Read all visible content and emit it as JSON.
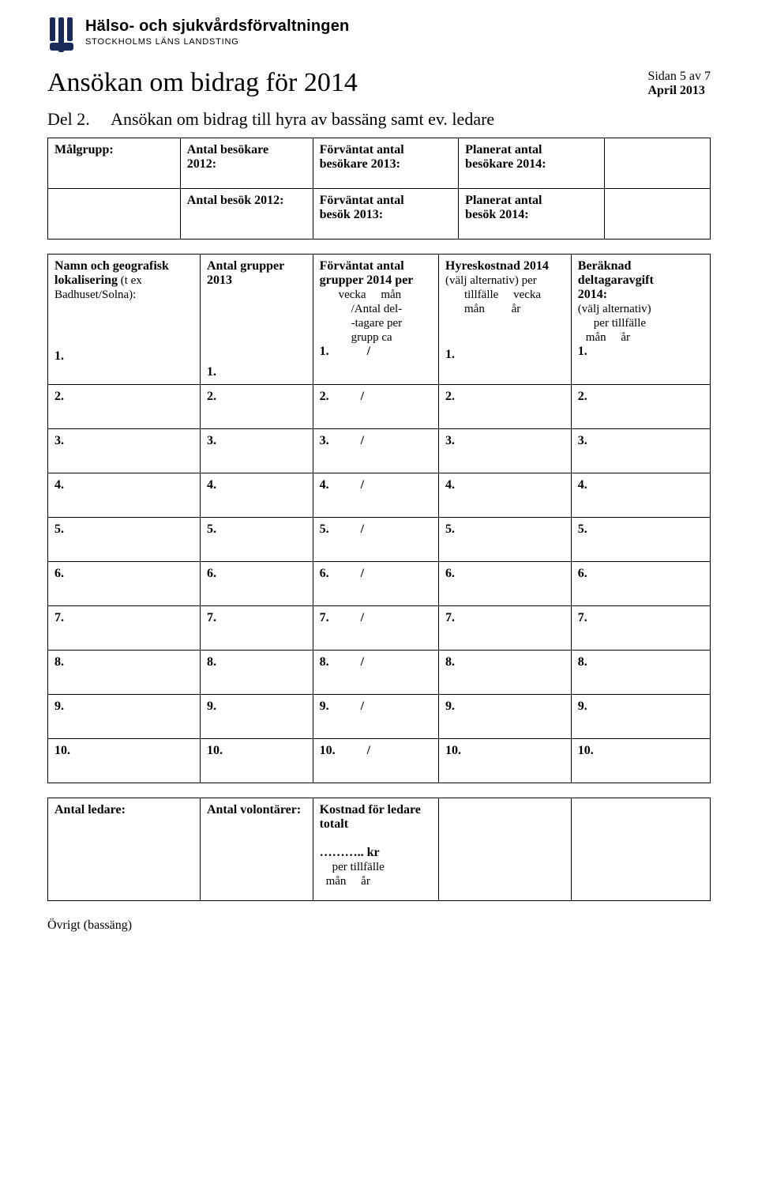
{
  "header": {
    "org_name": "Hälso- och sjukvårdsförvaltningen",
    "org_sub": "STOCKHOLMS LÄNS LANDSTING"
  },
  "doc": {
    "title": "Ansökan om bidrag för 2014",
    "page_indicator": "Sidan 5 av 7",
    "date_line": "April 2013"
  },
  "section": {
    "part_label": "Del 2.",
    "part_title": "Ansökan om bidrag till hyra av bassäng samt ev. ledare"
  },
  "table1": {
    "r1c1": "Målgrupp:",
    "r1c2a": "Antal besökare",
    "r1c2b": "2012:",
    "r1c3a": "Förväntat antal",
    "r1c3b": "besökare 2013:",
    "r1c4a": "Planerat antal",
    "r1c4b": "besökare 2014:",
    "r2c2a": "Antal besök 2012:",
    "r2c3a": "Förväntat antal",
    "r2c3b": "besök 2013:",
    "r2c4a": "Planerat antal",
    "r2c4b": "besök 2014:"
  },
  "table2": {
    "h1a": "Namn och geografisk",
    "h1b": "lokalisering",
    "h1c": " (t ex",
    "h1d": "Badhuset/Solna):",
    "h2": "Antal grupper 2013",
    "h3a": "Förväntat antal",
    "h3b": "grupper 2014 per",
    "h3c_vecka": "vecka",
    "h3c_man": "mån",
    "h3d": "/Antal del-",
    "h3e": "-tagare per",
    "h3f": "grupp ca",
    "h4a": "Hyreskostnad 2014",
    "h4b": "(välj alternativ) per",
    "h4c_tillf": "tillfälle",
    "h4c_vecka": "vecka",
    "h4d_man": "mån",
    "h4d_ar": "år",
    "h5a": "Beräknad",
    "h5b": "deltagaravgift",
    "h5c": "2014:",
    "h5d": "(välj alternativ)",
    "h5e": "per tillfälle",
    "h5f_man": "mån",
    "h5f_ar": "år",
    "rows": [
      "1.",
      "2.",
      "3.",
      "4.",
      "5.",
      "6.",
      "7.",
      "8.",
      "9.",
      "10."
    ],
    "slash": "/"
  },
  "table3": {
    "c1": "Antal ledare:",
    "c2": "Antal volontärer:",
    "c3a": "Kostnad för ledare",
    "c3b": "totalt",
    "c3c": "……….. kr",
    "c3d": "per tillfälle",
    "c3e_man": "mån",
    "c3e_ar": "år"
  },
  "footer": {
    "ovrigt": "Övrigt (bassäng)"
  }
}
